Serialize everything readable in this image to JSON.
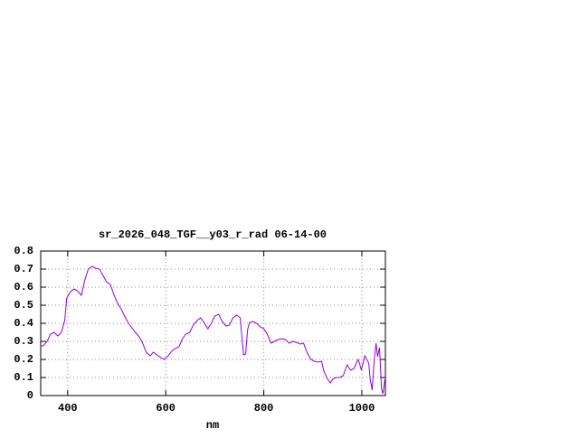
{
  "chart_data": {
    "type": "line",
    "title": "sr_2026_048_TGF__y03_r_rad 06-14-00",
    "x_label": "nm",
    "xlim": [
      345,
      1048
    ],
    "ylim": [
      0,
      0.8
    ],
    "xticks": [
      400,
      600,
      800,
      1000
    ],
    "yticks": [
      0,
      0.1,
      0.2,
      0.3,
      0.4,
      0.5,
      0.6,
      0.7,
      0.8
    ],
    "grid": true,
    "x": [
      345,
      350,
      358,
      365,
      372,
      380,
      387,
      394,
      398,
      406,
      413,
      420,
      428,
      435,
      442,
      450,
      457,
      465,
      472,
      479,
      487,
      494,
      501,
      509,
      516,
      524,
      531,
      538,
      546,
      553,
      560,
      568,
      575,
      582,
      590,
      597,
      605,
      612,
      619,
      627,
      634,
      641,
      649,
      656,
      664,
      671,
      678,
      686,
      693,
      700,
      708,
      715,
      723,
      730,
      737,
      745,
      752,
      756,
      759,
      763,
      767,
      771,
      778,
      785,
      793,
      800,
      807,
      815,
      822,
      829,
      837,
      844,
      852,
      859,
      866,
      874,
      881,
      888,
      896,
      903,
      911,
      918,
      922,
      929,
      936,
      940,
      947,
      955,
      962,
      970,
      977,
      984,
      992,
      995,
      999,
      1006,
      1014,
      1017,
      1021,
      1025,
      1029,
      1032,
      1036,
      1040,
      1043,
      1047
    ],
    "series": [
      {
        "color": "#9400d3",
        "values": [
          0.275,
          0.275,
          0.3,
          0.34,
          0.35,
          0.33,
          0.35,
          0.415,
          0.54,
          0.575,
          0.59,
          0.58,
          0.555,
          0.64,
          0.7,
          0.715,
          0.705,
          0.7,
          0.665,
          0.63,
          0.615,
          0.56,
          0.515,
          0.48,
          0.44,
          0.4,
          0.375,
          0.35,
          0.325,
          0.29,
          0.24,
          0.22,
          0.24,
          0.225,
          0.21,
          0.2,
          0.22,
          0.245,
          0.26,
          0.27,
          0.315,
          0.34,
          0.35,
          0.39,
          0.415,
          0.43,
          0.405,
          0.37,
          0.4,
          0.44,
          0.45,
          0.41,
          0.385,
          0.39,
          0.43,
          0.445,
          0.43,
          0.3,
          0.225,
          0.23,
          0.365,
          0.405,
          0.41,
          0.4,
          0.38,
          0.37,
          0.34,
          0.29,
          0.3,
          0.31,
          0.315,
          0.31,
          0.29,
          0.3,
          0.295,
          0.285,
          0.29,
          0.24,
          0.2,
          0.19,
          0.185,
          0.19,
          0.14,
          0.095,
          0.07,
          0.09,
          0.1,
          0.1,
          0.11,
          0.17,
          0.14,
          0.15,
          0.2,
          0.18,
          0.14,
          0.22,
          0.18,
          0.09,
          0.03,
          0.19,
          0.29,
          0.215,
          0.265,
          0.04,
          0.01,
          0.09
        ]
      }
    ]
  }
}
